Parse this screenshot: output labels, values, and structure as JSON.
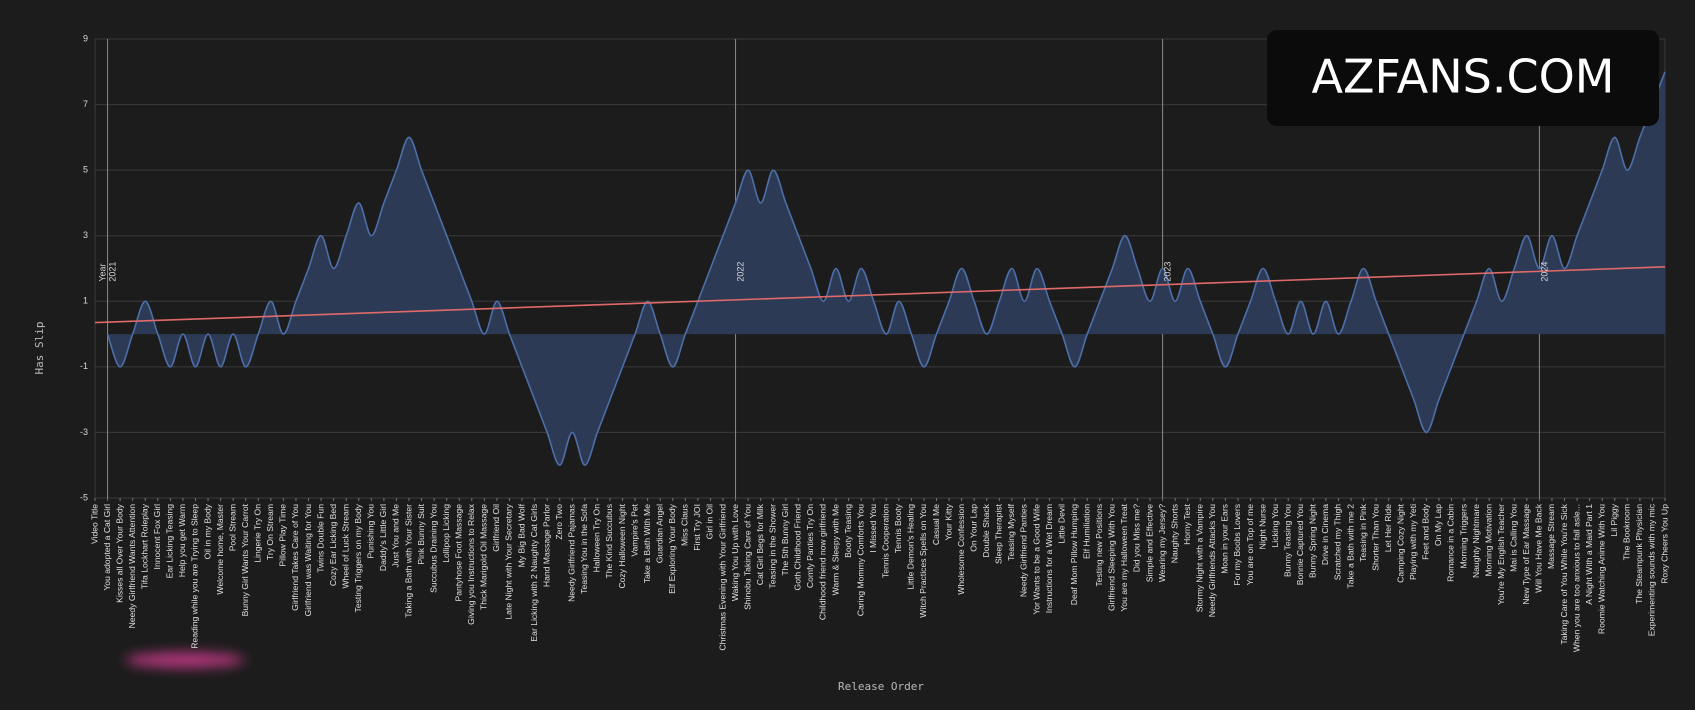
{
  "chart_data": {
    "type": "area",
    "x_label": "Release Order",
    "y_label": "Has Slip",
    "watermark": "AZFANS.COM",
    "year_title": "Year",
    "year_markers": [
      {
        "at": "You adopted a Cat Girl",
        "label": "2021"
      },
      {
        "at": "Waking You Up with Love",
        "label": "2022"
      },
      {
        "at": "Wearing my Jersey?",
        "label": "2023"
      },
      {
        "at": "Will You Have Me Back",
        "label": "2024"
      }
    ],
    "categories": [
      "Video Title",
      "You adopted a Cat Girl",
      "Kisses all Over Your Body",
      "Needy Girlfriend Wants Attention",
      "Tifa Lockhart Roleplay",
      "Innocent Fox Girl",
      "Ear Licking Teasing",
      "Help you get Warm",
      "Reading while you are Trying to Sleep",
      "Oil in my Body",
      "Welcome home, Master",
      "Pool Stream",
      "Bunny Girl Wants Your Carrot",
      "Lingerie Try On",
      "Try On Stream",
      "Pillow Play Time",
      "Girlfriend Takes Care of You",
      "Girlfriend was Waiting for You",
      "Twins Double Fun",
      "Cozy Ear Licking Bed",
      "Wheel of Luck Stream",
      "Testing Triggers on my Body",
      "Punishing You",
      "Daddy's Little Girl",
      "Just You and Me",
      "Taking a Bath with Your Sister",
      "Pink Bunny Suit",
      "Succubus Draining You",
      "Lollipop Licking",
      "Pantyhose Foot Massage",
      "Giving you Instructions to Relax",
      "Thick Marigold Oil Massage",
      "Girlfriend Oil",
      "Late Night with Your Secretary",
      "My Big Bad Wolf",
      "Ear Licking with 2 Naughty Cat Girls",
      "Hand Massage Parlor",
      "Zero Two",
      "Needy Girlfriend Pajamas",
      "Teasing You in the Sofa",
      "Halloween Try On",
      "The Kind Succubus",
      "Cozy Halloween Night",
      "Vampire's Pet",
      "Take a Bath With Me",
      "Guardian Angel",
      "Elf Exploring Your Body",
      "Miss Claus",
      "First Try JOI",
      "Girl in Oil",
      "Christmas Evening with Your Girlfriend",
      "Waking You Up with Love",
      "Shinobu Taking Care of You",
      "Cat Girl Begs for Milk",
      "Teasing in the Shower",
      "The 5th Bunny Girl",
      "Goth Childhood Friend",
      "Comfy Panties Try On",
      "Childhood friend now girlfriend",
      "Warm & Sleepy with Me",
      "Booty Teasing",
      "Caring Mommy Comforts You",
      "I Missed You",
      "Tennis Cooperation",
      "Tennis Booty",
      "Little Demon's Healing",
      "Witch Practices Spells on You",
      "Casual Me",
      "Your Kitty",
      "Wholesome Confession",
      "On Your Lap",
      "Double Shack",
      "Sleep Therapist",
      "Teasing Myself",
      "Needy Girlfriend Panties",
      "Yor Wants to be a Good Wife",
      "Instructions for a Wet Dream",
      "Little Devil",
      "Deaf Mom Pillow Humping",
      "Elf Humiliation",
      "Testing new Positions",
      "Girlfriend Sleeping With You",
      "You are my Halloween Treat",
      "Did you Miss me?",
      "Simple and Effective",
      "Wearing my Jersey?",
      "Naughty Shorts",
      "Horny Test",
      "Stormy Night with a Vampire",
      "Needy Girlfriends Attacks You",
      "Moan in your Ears",
      "For my Boobs Lovers",
      "You are on Top of me",
      "Night Nurse",
      "Licking You",
      "Bunny Teasing You",
      "Bonnie Captured You",
      "Bunny Spring Night",
      "Drive in Cinema",
      "Scratched my Thigh",
      "Take a Bath with me 2",
      "Teasing in Pink",
      "Shorter Than You",
      "Let Her Ride",
      "Camping Cozy Night",
      "Playing with my Yeti",
      "Feet and Body",
      "On My Lap",
      "Romance in a Cabin",
      "Morning Triggers",
      "Naughty Nightmare",
      "Morning Motivation",
      "You're My English Teacher",
      "Mai is Calling You",
      "New Type of Ear Massage",
      "Will You Have Me Back",
      "Massage Stream",
      "Taking Care of You While You're Sick",
      "When you are too anxious to fall asle...",
      "A Night With a Maid Part 1",
      "Roomie Watching Anime With You",
      "Lil Piggy",
      "The Bookroom",
      "The Steampunk Physician",
      "Experimenting sounds with my mic",
      "Roxy Cheers You Up"
    ],
    "values": [
      null,
      0,
      -1,
      0,
      1,
      0,
      -1,
      0,
      -1,
      0,
      -1,
      0,
      -1,
      0,
      1,
      0,
      1,
      2,
      3,
      2,
      3,
      4,
      3,
      4,
      5,
      6,
      5,
      4,
      3,
      2,
      1,
      0,
      1,
      0,
      -1,
      -2,
      -3,
      -4,
      -3,
      -4,
      -3,
      -2,
      -1,
      0,
      1,
      0,
      -1,
      0,
      1,
      2,
      3,
      4,
      5,
      4,
      5,
      4,
      3,
      2,
      1,
      2,
      1,
      2,
      1,
      0,
      1,
      0,
      -1,
      0,
      1,
      2,
      1,
      0,
      1,
      2,
      1,
      2,
      1,
      0,
      -1,
      0,
      1,
      2,
      3,
      2,
      1,
      2,
      1,
      2,
      1,
      0,
      -1,
      0,
      1,
      2,
      1,
      0,
      1,
      0,
      1,
      0,
      1,
      2,
      1,
      0,
      -1,
      -2,
      -3,
      -2,
      -1,
      0,
      1,
      2,
      1,
      2,
      3,
      2,
      3,
      2,
      3,
      4,
      5,
      6,
      5,
      6,
      7,
      8
    ],
    "color": "#4d6ea8",
    "fill_color": "#2c3a56",
    "trendline": {
      "start": 0.35,
      "end": 2.05,
      "color": "#e06a6a"
    },
    "ylim": [
      -5,
      9
    ],
    "yticks": [
      -5,
      -3,
      -1,
      1,
      3,
      5,
      7,
      9
    ],
    "grid": true
  }
}
